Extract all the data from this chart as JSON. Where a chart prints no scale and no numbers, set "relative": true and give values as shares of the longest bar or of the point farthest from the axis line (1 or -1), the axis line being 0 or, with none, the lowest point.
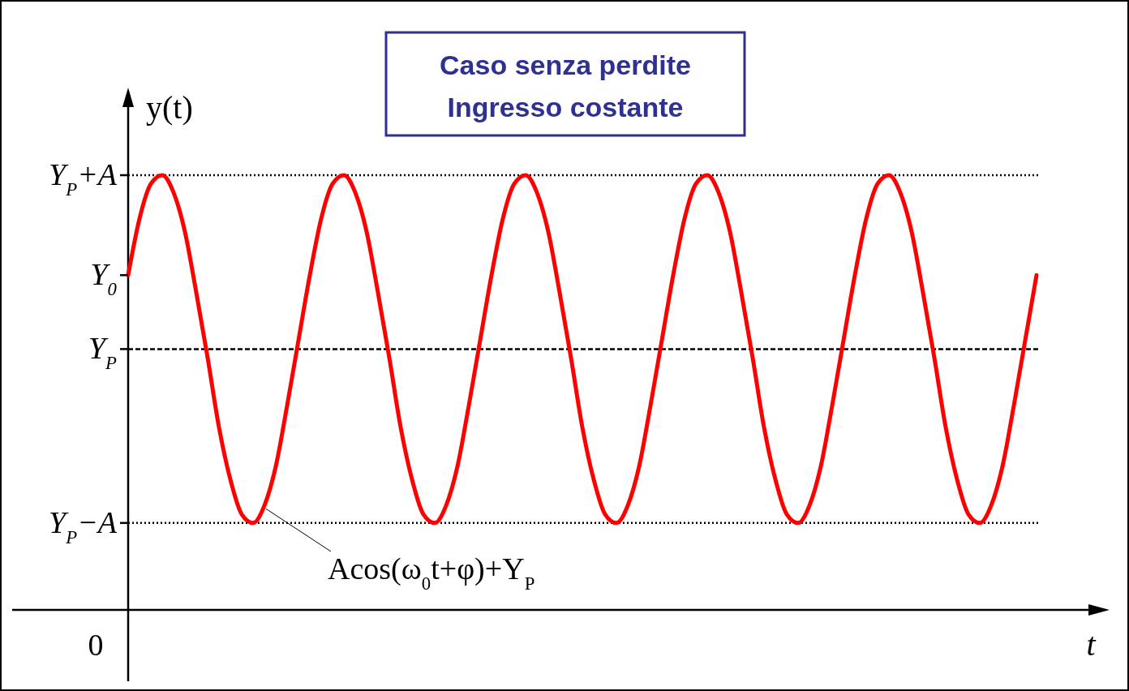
{
  "chart_data": {
    "type": "line",
    "title": "Caso senza perdite\nIngresso costante",
    "xlabel": "t",
    "ylabel": "y(t)",
    "relative": true,
    "categories": [
      null,
      null,
      null,
      null,
      null,
      null,
      null,
      null,
      null,
      null,
      null,
      null,
      null,
      null,
      null,
      null,
      null,
      null,
      null,
      null,
      null,
      null,
      null,
      null,
      null,
      null,
      null,
      null,
      null,
      null,
      null,
      null,
      null,
      null,
      null,
      null,
      null,
      null,
      null,
      null,
      null,
      null,
      null,
      null,
      null,
      null,
      null,
      null,
      null,
      null,
      null,
      null,
      null,
      null,
      null,
      null,
      null,
      null,
      null,
      null,
      null,
      null,
      null,
      null,
      null,
      null,
      null,
      null,
      null,
      null,
      null,
      null,
      null,
      null,
      null,
      null,
      null,
      null,
      null,
      null,
      null
    ],
    "series": [
      {
        "color": "#ff0000",
        "values": [
          0.77,
          0.9,
          0.98,
          1.0,
          0.96,
          0.87,
          0.73,
          0.58,
          0.42,
          0.3,
          0.22,
          0.2,
          0.24,
          0.33,
          0.47,
          0.62,
          0.77,
          0.9,
          0.98,
          1.0,
          0.96,
          0.87,
          0.73,
          0.58,
          0.42,
          0.3,
          0.22,
          0.2,
          0.24,
          0.33,
          0.47,
          0.62,
          0.77,
          0.9,
          0.98,
          1.0,
          0.96,
          0.87,
          0.73,
          0.58,
          0.42,
          0.3,
          0.22,
          0.2,
          0.24,
          0.33,
          0.47,
          0.62,
          0.77,
          0.9,
          0.98,
          1.0,
          0.96,
          0.87,
          0.73,
          0.58,
          0.42,
          0.3,
          0.22,
          0.2,
          0.24,
          0.33,
          0.47,
          0.62,
          0.77,
          0.9,
          0.98,
          1.0,
          0.96,
          0.87,
          0.73,
          0.58,
          0.42,
          0.3,
          0.22,
          0.2,
          0.24,
          0.33,
          0.47,
          0.62,
          0.77
        ]
      }
    ],
    "ref_lines": [
      {
        "axis": "y",
        "value": 1.0,
        "label": "Y$_{P}$+A",
        "line_style": "dotted",
        "color": "#000000"
      },
      {
        "axis": "y",
        "value": 0.6,
        "label": "Y$_{P}$",
        "line_style": "dashed",
        "color": "#000000"
      },
      {
        "axis": "y",
        "value": 0.2,
        "label": "Y$_{P}$−A",
        "line_style": "dotted",
        "color": "#000000"
      }
    ],
    "annotations": [
      "0",
      "Y$_{0}$",
      "Acos(ω$_{0}$t+φ)+Y$_{P}$"
    ]
  }
}
